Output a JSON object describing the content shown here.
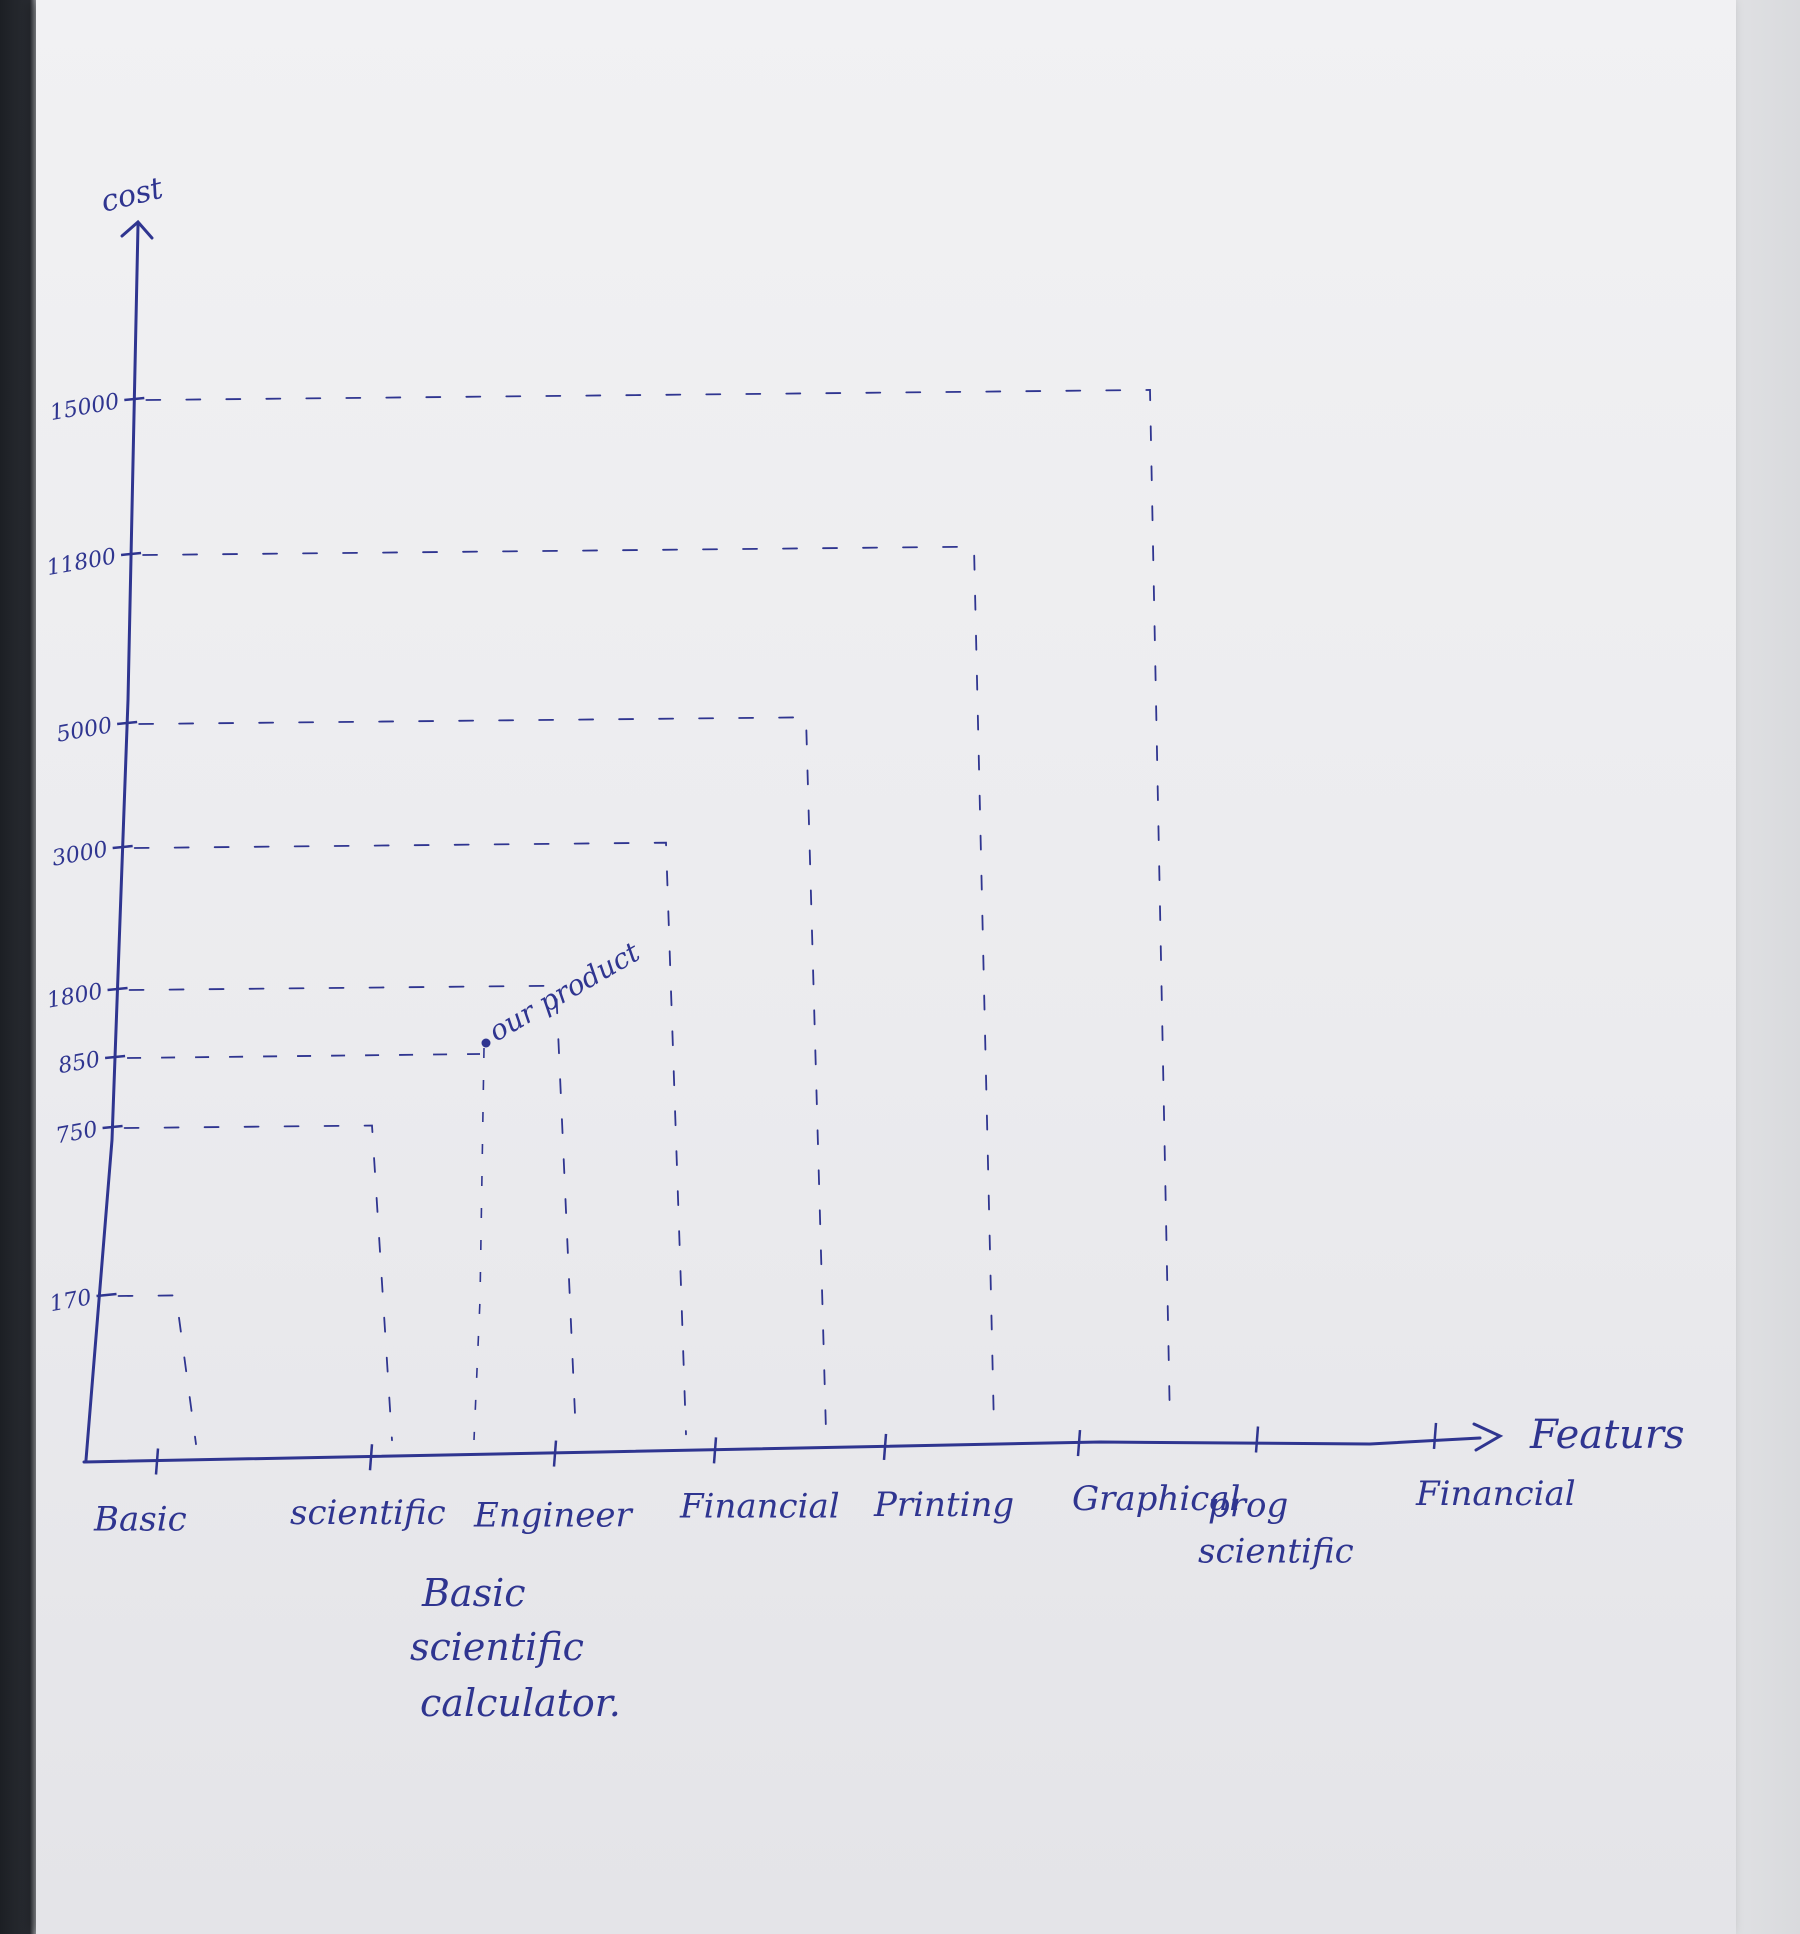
{
  "ink_color": "#2f3590",
  "paper_color": "#ececef",
  "chart_data": {
    "type": "scatter",
    "title": "",
    "xlabel": "Featurs",
    "ylabel": "cost",
    "categories": [
      "Basic",
      "scientific",
      "Engineer",
      "Financial",
      "Printing",
      "Graphical",
      "prog scientific",
      "Financial"
    ],
    "y_ticks": [
      "170",
      "750",
      "850",
      "1800",
      "3000",
      "5000",
      "11800",
      "15000"
    ],
    "points": [
      {
        "category": "Basic",
        "cost": 170
      },
      {
        "category": "scientific",
        "cost": 750
      },
      {
        "category": "Engineer",
        "cost": 1800
      },
      {
        "category": "Financial",
        "cost": 3000
      },
      {
        "category": "Printing",
        "cost": 5000
      },
      {
        "category": "Graphical",
        "cost": 11800
      },
      {
        "category": "prog scientific",
        "cost": 15000
      }
    ],
    "our_product": {
      "label": "our product",
      "cost": 850,
      "note": "Basic scientific calculator."
    }
  }
}
